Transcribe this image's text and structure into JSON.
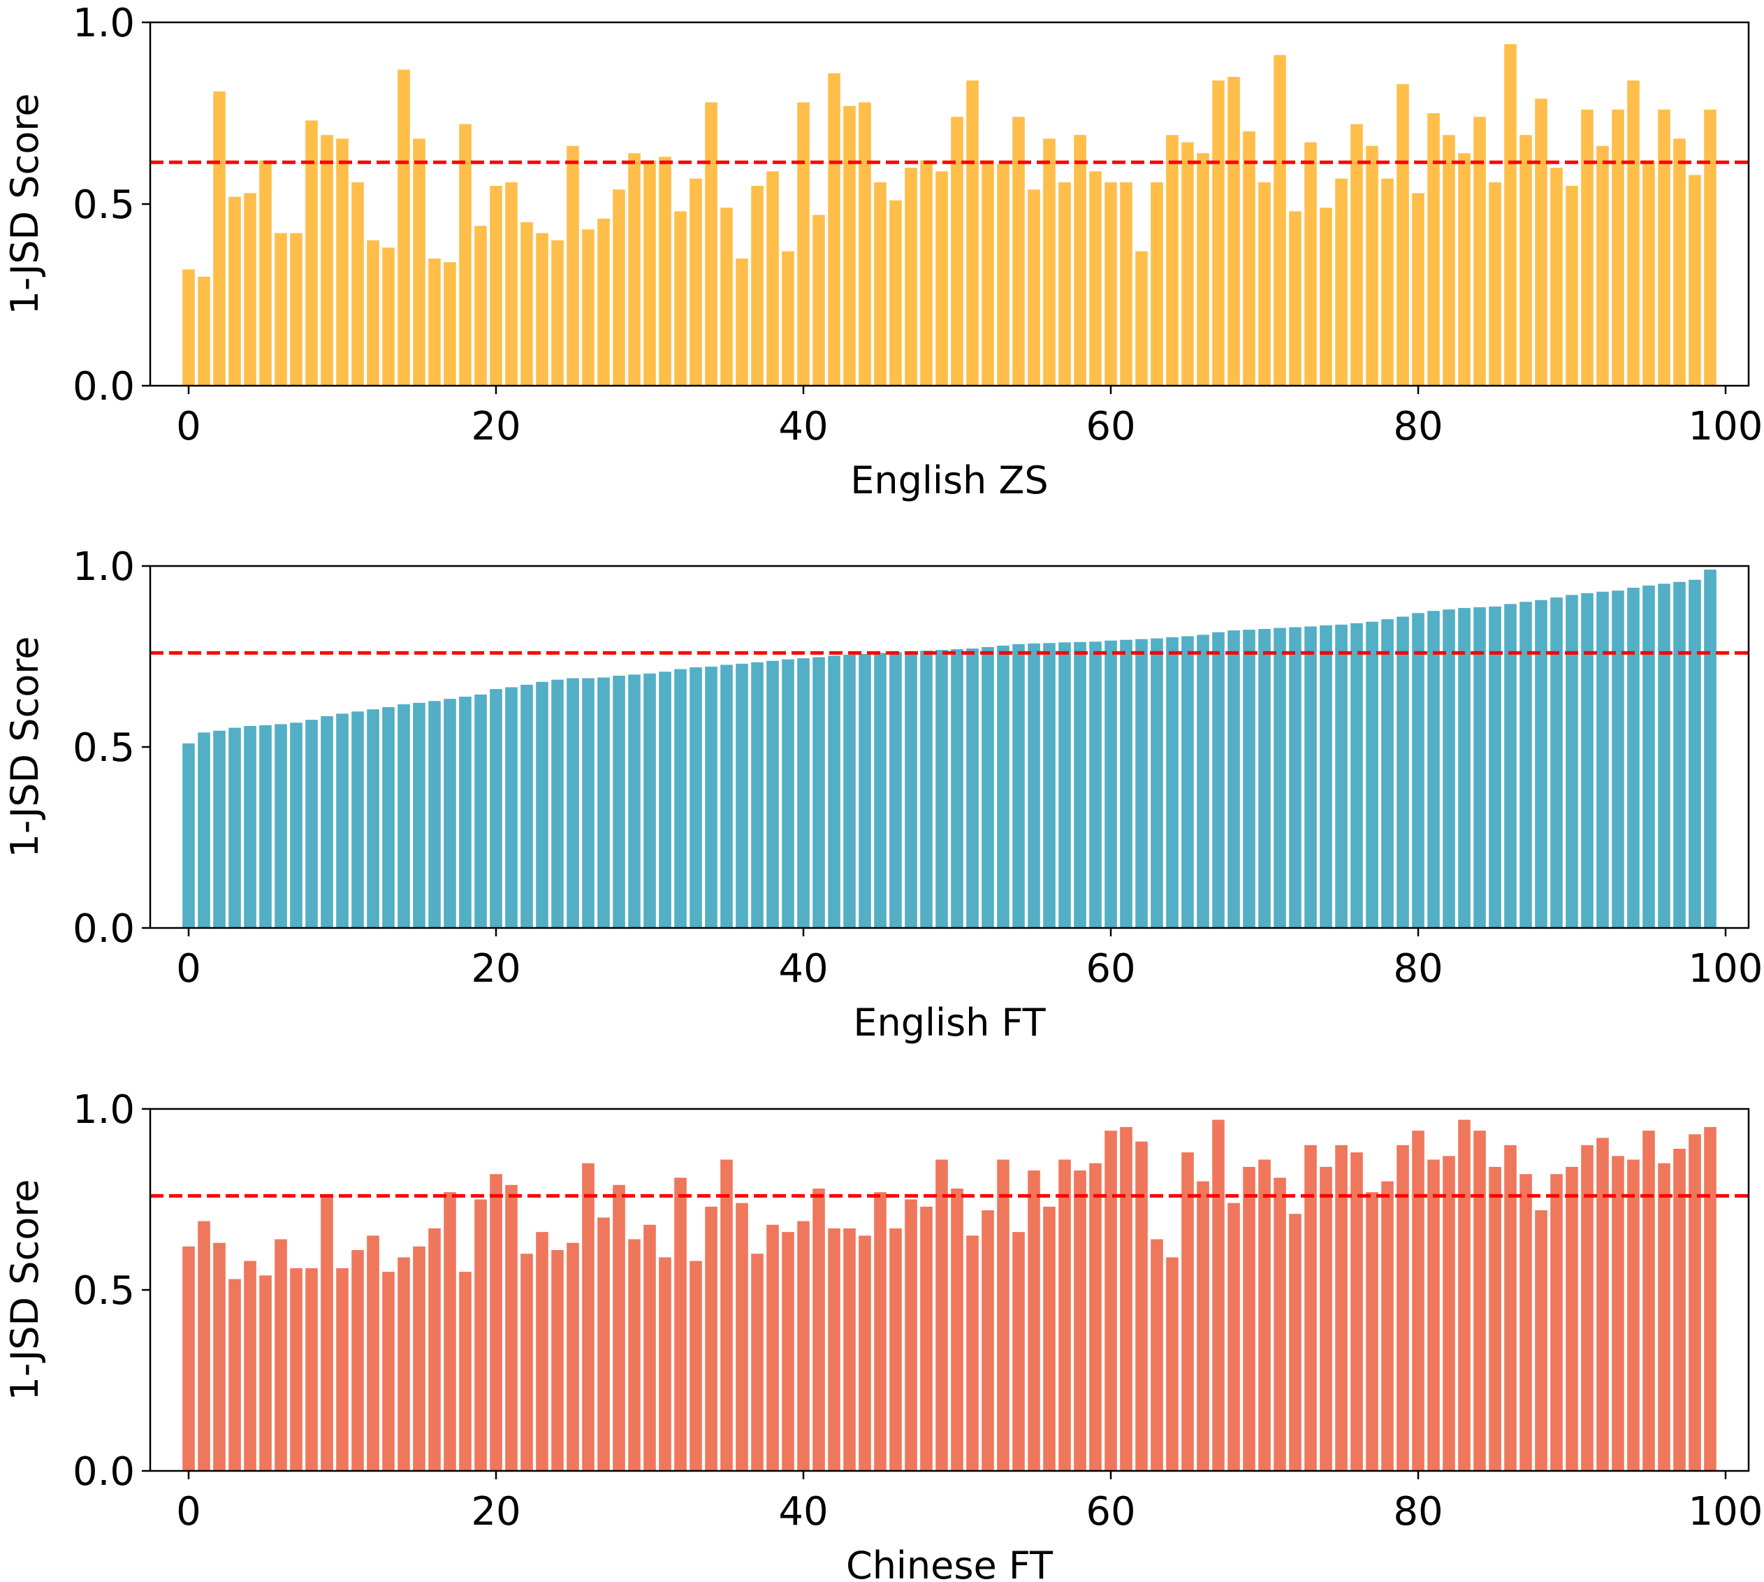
{
  "colors": {
    "english_zs": "#FFBE4A",
    "english_ft": "#52AFC5",
    "chinese_ft": "#EE775C",
    "mean_line": "#FF0000",
    "axes": "#000000"
  },
  "chart_data": [
    {
      "type": "bar",
      "title": "",
      "xlabel": "English ZS",
      "ylabel": "1-JSD Score",
      "xlim": [
        -2.5,
        101.5
      ],
      "ylim": [
        0,
        1.0
      ],
      "xticks": [
        0,
        20,
        40,
        60,
        80,
        100
      ],
      "yticks": [
        0.0,
        0.5,
        1.0
      ],
      "xtick_labels": [
        "0",
        "20",
        "40",
        "60",
        "80",
        "100"
      ],
      "ytick_labels": [
        "0.0",
        "0.5",
        "1.0"
      ],
      "color_key": "english_zs",
      "mean_line": 0.615,
      "values": [
        0.32,
        0.3,
        0.81,
        0.52,
        0.53,
        0.62,
        0.42,
        0.42,
        0.73,
        0.69,
        0.68,
        0.56,
        0.4,
        0.38,
        0.87,
        0.68,
        0.35,
        0.34,
        0.72,
        0.44,
        0.55,
        0.56,
        0.45,
        0.42,
        0.4,
        0.66,
        0.43,
        0.46,
        0.54,
        0.64,
        0.62,
        0.63,
        0.48,
        0.57,
        0.78,
        0.49,
        0.35,
        0.55,
        0.59,
        0.37,
        0.78,
        0.47,
        0.86,
        0.77,
        0.78,
        0.56,
        0.51,
        0.6,
        0.62,
        0.59,
        0.74,
        0.84,
        0.62,
        0.61,
        0.74,
        0.54,
        0.68,
        0.56,
        0.69,
        0.59,
        0.56,
        0.56,
        0.37,
        0.56,
        0.69,
        0.67,
        0.64,
        0.84,
        0.85,
        0.7,
        0.56,
        0.91,
        0.48,
        0.67,
        0.49,
        0.57,
        0.72,
        0.66,
        0.57,
        0.83,
        0.53,
        0.75,
        0.69,
        0.64,
        0.74,
        0.56,
        0.94,
        0.69,
        0.79,
        0.6,
        0.55,
        0.76,
        0.66,
        0.76,
        0.84,
        0.62,
        0.76,
        0.68,
        0.58,
        0.76
      ]
    },
    {
      "type": "bar",
      "title": "",
      "xlabel": "English FT",
      "ylabel": "1-JSD Score",
      "xlim": [
        -2.5,
        101.5
      ],
      "ylim": [
        0,
        1.0
      ],
      "xticks": [
        0,
        20,
        40,
        60,
        80,
        100
      ],
      "yticks": [
        0.0,
        0.5,
        1.0
      ],
      "xtick_labels": [
        "0",
        "20",
        "40",
        "60",
        "80",
        "100"
      ],
      "ytick_labels": [
        "0.0",
        "0.5",
        "1.0"
      ],
      "color_key": "english_ft",
      "mean_line": 0.76,
      "values": [
        0.51,
        0.54,
        0.545,
        0.553,
        0.558,
        0.56,
        0.563,
        0.567,
        0.575,
        0.585,
        0.592,
        0.598,
        0.604,
        0.61,
        0.618,
        0.622,
        0.627,
        0.633,
        0.639,
        0.645,
        0.66,
        0.665,
        0.672,
        0.68,
        0.686,
        0.69,
        0.69,
        0.692,
        0.697,
        0.7,
        0.703,
        0.708,
        0.715,
        0.72,
        0.722,
        0.727,
        0.73,
        0.734,
        0.738,
        0.742,
        0.745,
        0.748,
        0.752,
        0.755,
        0.757,
        0.76,
        0.762,
        0.764,
        0.766,
        0.768,
        0.77,
        0.772,
        0.776,
        0.78,
        0.784,
        0.786,
        0.787,
        0.789,
        0.79,
        0.791,
        0.794,
        0.796,
        0.798,
        0.8,
        0.803,
        0.806,
        0.81,
        0.817,
        0.822,
        0.824,
        0.826,
        0.829,
        0.831,
        0.833,
        0.836,
        0.838,
        0.842,
        0.846,
        0.853,
        0.86,
        0.87,
        0.876,
        0.88,
        0.884,
        0.886,
        0.888,
        0.895,
        0.901,
        0.906,
        0.913,
        0.92,
        0.925,
        0.929,
        0.932,
        0.94,
        0.946,
        0.951,
        0.956,
        0.962,
        0.99
      ]
    },
    {
      "type": "bar",
      "title": "",
      "xlabel": "Chinese FT",
      "ylabel": "1-JSD Score",
      "xlim": [
        -2.5,
        101.5
      ],
      "ylim": [
        0,
        1.0
      ],
      "xticks": [
        0,
        20,
        40,
        60,
        80,
        100
      ],
      "yticks": [
        0.0,
        0.5,
        1.0
      ],
      "xtick_labels": [
        "0",
        "20",
        "40",
        "60",
        "80",
        "100"
      ],
      "ytick_labels": [
        "0.0",
        "0.5",
        "1.0"
      ],
      "color_key": "chinese_ft",
      "mean_line": 0.76,
      "values": [
        0.62,
        0.69,
        0.63,
        0.53,
        0.58,
        0.54,
        0.64,
        0.56,
        0.56,
        0.76,
        0.56,
        0.61,
        0.65,
        0.55,
        0.59,
        0.62,
        0.67,
        0.77,
        0.55,
        0.75,
        0.82,
        0.79,
        0.6,
        0.66,
        0.61,
        0.63,
        0.85,
        0.7,
        0.79,
        0.64,
        0.68,
        0.59,
        0.81,
        0.58,
        0.73,
        0.86,
        0.74,
        0.6,
        0.68,
        0.66,
        0.69,
        0.78,
        0.67,
        0.67,
        0.65,
        0.77,
        0.67,
        0.75,
        0.73,
        0.86,
        0.78,
        0.65,
        0.72,
        0.86,
        0.66,
        0.83,
        0.73,
        0.86,
        0.83,
        0.85,
        0.94,
        0.95,
        0.91,
        0.64,
        0.59,
        0.88,
        0.8,
        0.97,
        0.74,
        0.84,
        0.86,
        0.81,
        0.71,
        0.9,
        0.84,
        0.9,
        0.88,
        0.77,
        0.8,
        0.9,
        0.94,
        0.86,
        0.87,
        0.97,
        0.94,
        0.84,
        0.9,
        0.82,
        0.72,
        0.82,
        0.84,
        0.9,
        0.92,
        0.87,
        0.86,
        0.94,
        0.85,
        0.89,
        0.93,
        0.95
      ]
    }
  ]
}
